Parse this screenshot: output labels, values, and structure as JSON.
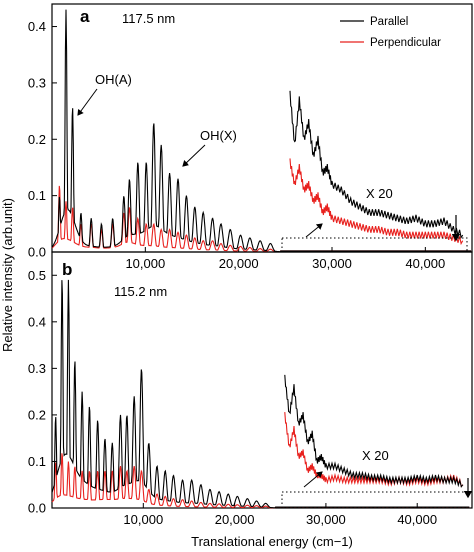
{
  "chart_data": [
    {
      "type": "line",
      "panel": "a",
      "annotation_wavelength": "117.5 nm",
      "xlabel": "Translational energy (cm−1)",
      "ylabel": "Relative intensity (arb.unit)",
      "xlim": [
        0,
        45000
      ],
      "ylim": [
        0,
        0.44
      ],
      "yticks": [
        0.0,
        0.1,
        0.2,
        0.3,
        0.4
      ],
      "yticklabels": [
        "0.0",
        "0.1",
        "0.2",
        "0.3",
        "0.4"
      ],
      "xticks": [
        10000,
        20000,
        30000,
        40000
      ],
      "xticklabels": [
        "10,000",
        "20,000",
        "30,000",
        "40,000"
      ],
      "legend": {
        "placement": "top-right",
        "entries": [
          "Parallel",
          "Perpendicular"
        ]
      },
      "labels": [
        "OH(A)",
        "OH(X)",
        "X 20"
      ],
      "series": [
        {
          "name": "Parallel",
          "color": "#000000",
          "peaks": [
            [
              800,
              0.1
            ],
            [
              1500,
              0.43
            ],
            [
              2200,
              0.26
            ],
            [
              3100,
              0.07
            ],
            [
              4200,
              0.06
            ],
            [
              5300,
              0.05
            ],
            [
              6500,
              0.06
            ],
            [
              7700,
              0.1
            ],
            [
              8300,
              0.13
            ],
            [
              9200,
              0.16
            ],
            [
              10100,
              0.16
            ],
            [
              10900,
              0.23
            ],
            [
              11700,
              0.19
            ],
            [
              12600,
              0.14
            ],
            [
              13500,
              0.13
            ],
            [
              14400,
              0.1
            ],
            [
              15300,
              0.08
            ],
            [
              16200,
              0.07
            ],
            [
              17200,
              0.06
            ],
            [
              18100,
              0.05
            ],
            [
              19100,
              0.04
            ],
            [
              20200,
              0.03
            ],
            [
              21200,
              0.025
            ],
            [
              22300,
              0.02
            ],
            [
              23400,
              0.015
            ]
          ],
          "scaled_x20": [
            [
              25500,
              0.28
            ],
            [
              26000,
              0.19
            ],
            [
              26500,
              0.27
            ],
            [
              27000,
              0.2
            ],
            [
              27500,
              0.23
            ],
            [
              28000,
              0.17
            ],
            [
              28500,
              0.2
            ],
            [
              29000,
              0.14
            ],
            [
              29500,
              0.15
            ],
            [
              30000,
              0.12
            ],
            [
              31000,
              0.11
            ],
            [
              32000,
              0.09
            ],
            [
              33000,
              0.08
            ],
            [
              34000,
              0.07
            ],
            [
              35000,
              0.07
            ],
            [
              36000,
              0.065
            ],
            [
              37000,
              0.06
            ],
            [
              38000,
              0.055
            ],
            [
              39000,
              0.06
            ],
            [
              40000,
              0.05
            ],
            [
              41000,
              0.05
            ],
            [
              42000,
              0.055
            ],
            [
              43000,
              0.04
            ],
            [
              44000,
              0.03
            ]
          ]
        },
        {
          "name": "Perpendicular",
          "color": "#e8211e",
          "peaks": [
            [
              800,
              0.12
            ],
            [
              1500,
              0.09
            ],
            [
              2200,
              0.08
            ],
            [
              3100,
              0.05
            ],
            [
              4200,
              0.05
            ],
            [
              5300,
              0.04
            ],
            [
              6500,
              0.05
            ],
            [
              7700,
              0.07
            ],
            [
              8300,
              0.08
            ],
            [
              9200,
              0.06
            ],
            [
              10100,
              0.05
            ],
            [
              10900,
              0.05
            ],
            [
              11700,
              0.04
            ],
            [
              12600,
              0.04
            ],
            [
              13500,
              0.035
            ],
            [
              14400,
              0.03
            ],
            [
              15300,
              0.025
            ],
            [
              16200,
              0.02
            ],
            [
              17200,
              0.02
            ],
            [
              18100,
              0.015
            ],
            [
              19100,
              0.012
            ],
            [
              20200,
              0.01
            ],
            [
              21200,
              0.008
            ],
            [
              22300,
              0.006
            ],
            [
              23400,
              0.005
            ]
          ],
          "scaled_x20": [
            [
              25500,
              0.16
            ],
            [
              26000,
              0.12
            ],
            [
              26500,
              0.15
            ],
            [
              27000,
              0.11
            ],
            [
              27500,
              0.12
            ],
            [
              28000,
              0.09
            ],
            [
              28500,
              0.1
            ],
            [
              29000,
              0.07
            ],
            [
              29500,
              0.08
            ],
            [
              30000,
              0.06
            ],
            [
              31000,
              0.055
            ],
            [
              32000,
              0.05
            ],
            [
              33000,
              0.045
            ],
            [
              34000,
              0.04
            ],
            [
              35000,
              0.04
            ],
            [
              36000,
              0.035
            ],
            [
              37000,
              0.035
            ],
            [
              38000,
              0.03
            ],
            [
              39000,
              0.03
            ],
            [
              40000,
              0.03
            ],
            [
              41000,
              0.03
            ],
            [
              42000,
              0.03
            ],
            [
              43000,
              0.025
            ],
            [
              44000,
              0.02
            ]
          ]
        }
      ]
    },
    {
      "type": "line",
      "panel": "b",
      "annotation_wavelength": "115.2 nm",
      "xlabel": "Translational energy (cm−1)",
      "ylabel": "Relative intensity (arb.unit)",
      "xlim": [
        0,
        46000
      ],
      "ylim": [
        0,
        0.55
      ],
      "yticks": [
        0.0,
        0.1,
        0.2,
        0.3,
        0.4,
        0.5
      ],
      "yticklabels": [
        "0.0",
        "0.1",
        "0.2",
        "0.3",
        "0.4",
        "0.5"
      ],
      "xticks": [
        10000,
        20000,
        30000,
        40000
      ],
      "xticklabels": [
        "10,000",
        "20,000",
        "30,000",
        "40,000"
      ],
      "labels": [
        "X 20"
      ],
      "series": [
        {
          "name": "Parallel",
          "color": "#000000",
          "peaks": [
            [
              400,
              0.2
            ],
            [
              1100,
              0.5
            ],
            [
              1800,
              0.49
            ],
            [
              2500,
              0.32
            ],
            [
              3300,
              0.25
            ],
            [
              4100,
              0.22
            ],
            [
              5000,
              0.19
            ],
            [
              5800,
              0.15
            ],
            [
              6600,
              0.14
            ],
            [
              7500,
              0.2
            ],
            [
              8200,
              0.2
            ],
            [
              9000,
              0.24
            ],
            [
              9800,
              0.3
            ],
            [
              10600,
              0.14
            ],
            [
              11500,
              0.09
            ],
            [
              12400,
              0.08
            ],
            [
              13300,
              0.07
            ],
            [
              14300,
              0.06
            ],
            [
              15300,
              0.06
            ],
            [
              16300,
              0.05
            ],
            [
              17300,
              0.04
            ],
            [
              18300,
              0.035
            ],
            [
              19300,
              0.03
            ],
            [
              20300,
              0.025
            ],
            [
              21400,
              0.02
            ],
            [
              22400,
              0.015
            ],
            [
              23400,
              0.01
            ]
          ],
          "scaled_x20": [
            [
              25500,
              0.28
            ],
            [
              26000,
              0.2
            ],
            [
              26500,
              0.26
            ],
            [
              27000,
              0.18
            ],
            [
              27500,
              0.2
            ],
            [
              28000,
              0.14
            ],
            [
              28500,
              0.16
            ],
            [
              29000,
              0.1
            ],
            [
              29500,
              0.11
            ],
            [
              30000,
              0.09
            ],
            [
              31000,
              0.09
            ],
            [
              32000,
              0.08
            ],
            [
              33000,
              0.07
            ],
            [
              34000,
              0.07
            ],
            [
              35000,
              0.065
            ],
            [
              36000,
              0.065
            ],
            [
              37000,
              0.06
            ],
            [
              38000,
              0.06
            ],
            [
              39000,
              0.06
            ],
            [
              40000,
              0.065
            ],
            [
              41000,
              0.06
            ],
            [
              42000,
              0.065
            ],
            [
              43000,
              0.06
            ],
            [
              44000,
              0.06
            ],
            [
              45000,
              0.05
            ]
          ]
        },
        {
          "name": "Perpendicular",
          "color": "#e8211e",
          "peaks": [
            [
              400,
              0.1
            ],
            [
              1100,
              0.12
            ],
            [
              1800,
              0.1
            ],
            [
              2500,
              0.09
            ],
            [
              3300,
              0.08
            ],
            [
              4100,
              0.08
            ],
            [
              5000,
              0.08
            ],
            [
              5800,
              0.08
            ],
            [
              6600,
              0.08
            ],
            [
              7500,
              0.09
            ],
            [
              8200,
              0.08
            ],
            [
              9000,
              0.09
            ],
            [
              9800,
              0.08
            ],
            [
              10600,
              0.04
            ],
            [
              11500,
              0.03
            ],
            [
              12400,
              0.025
            ],
            [
              13300,
              0.02
            ],
            [
              14300,
              0.018
            ],
            [
              15300,
              0.015
            ],
            [
              16300,
              0.012
            ],
            [
              17300,
              0.01
            ],
            [
              18300,
              0.009
            ],
            [
              19300,
              0.008
            ],
            [
              20300,
              0.007
            ],
            [
              21400,
              0.006
            ],
            [
              22400,
              0.005
            ],
            [
              23400,
              0.004
            ]
          ],
          "scaled_x20": [
            [
              25500,
              0.2
            ],
            [
              26000,
              0.13
            ],
            [
              26500,
              0.17
            ],
            [
              27000,
              0.11
            ],
            [
              27500,
              0.12
            ],
            [
              28000,
              0.08
            ],
            [
              28500,
              0.09
            ],
            [
              29000,
              0.07
            ],
            [
              29500,
              0.07
            ],
            [
              30000,
              0.06
            ],
            [
              31000,
              0.065
            ],
            [
              32000,
              0.06
            ],
            [
              33000,
              0.06
            ],
            [
              34000,
              0.06
            ],
            [
              35000,
              0.06
            ],
            [
              36000,
              0.06
            ],
            [
              37000,
              0.055
            ],
            [
              38000,
              0.06
            ],
            [
              39000,
              0.055
            ],
            [
              40000,
              0.06
            ],
            [
              41000,
              0.055
            ],
            [
              42000,
              0.06
            ],
            [
              43000,
              0.06
            ],
            [
              44000,
              0.065
            ],
            [
              45000,
              0.05
            ]
          ]
        }
      ]
    }
  ],
  "colors": {
    "parallel": "#000000",
    "perpendicular": "#e8211e"
  }
}
